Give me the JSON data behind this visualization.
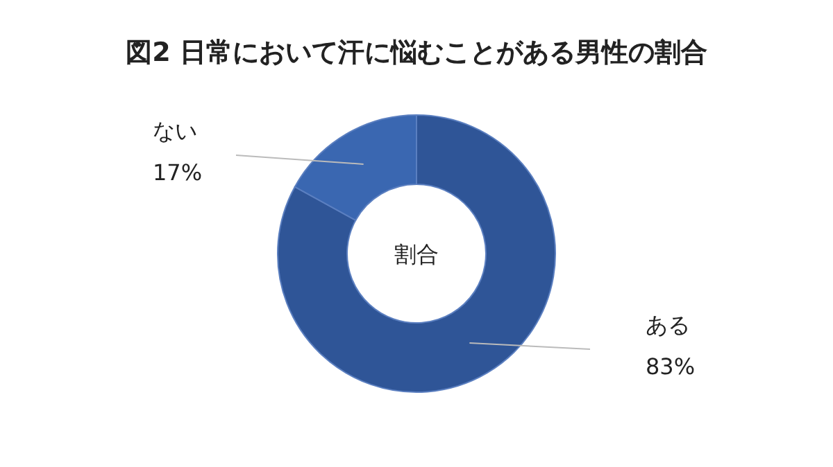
{
  "chart_data": {
    "type": "donut",
    "title": "図2 日常において汗に悩むことがある男性の割合",
    "categories": [
      "ある",
      "ない"
    ],
    "values": [
      83,
      17
    ],
    "value_labels": [
      "83%",
      "17%"
    ],
    "colors": [
      "#2f5597",
      "#3a67b1"
    ],
    "annotations": [
      "割合"
    ]
  }
}
